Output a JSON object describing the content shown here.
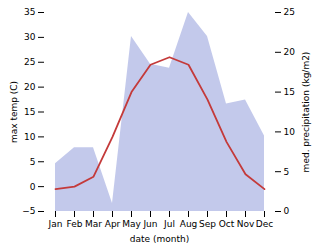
{
  "chart_data": {
    "type": "line",
    "categories": [
      "Jan",
      "Feb",
      "Mar",
      "Apr",
      "May",
      "Jun",
      "Jul",
      "Aug",
      "Sep",
      "Oct",
      "Nov",
      "Dec"
    ],
    "xlabel": "date (month)",
    "ylabel": "max temp (C)",
    "y2label": "med. precipitation (kg/m2)",
    "series": [
      {
        "type": "area",
        "axis": "y2",
        "color": "#b8c0e8",
        "values": [
          6.0,
          8.0,
          8.0,
          1.0,
          22.0,
          18.5,
          18.0,
          25.0,
          22.0,
          13.5,
          14.0,
          9.5
        ]
      },
      {
        "type": "line",
        "color": "#c43a3a",
        "values": [
          -0.5,
          0.0,
          2.0,
          10.0,
          19.0,
          24.5,
          26.0,
          24.5,
          17.5,
          9.0,
          2.5,
          -0.5
        ]
      }
    ],
    "ylim": [
      -5,
      35
    ],
    "yticks": [
      -5,
      0,
      5,
      10,
      15,
      20,
      25,
      30,
      35
    ],
    "y2lim": [
      0,
      25
    ],
    "y2ticks": [
      0,
      5,
      10,
      15,
      20,
      25
    ],
    "grid": false
  }
}
